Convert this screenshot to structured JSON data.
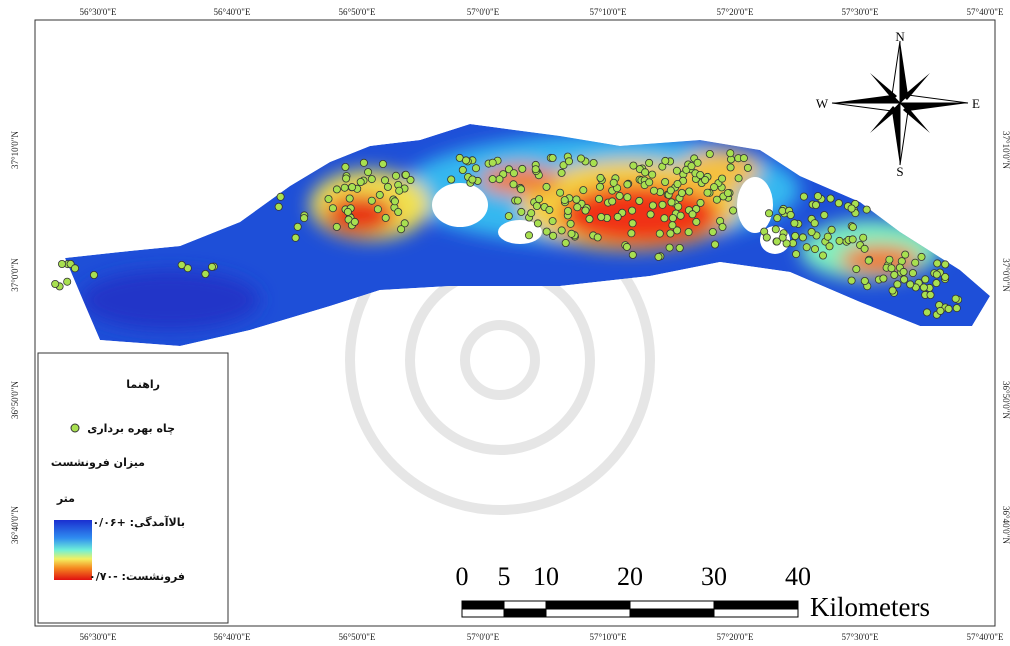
{
  "map": {
    "longitude_labels_top": [
      "56°30'0\"E",
      "56°40'0\"E",
      "56°50'0\"E",
      "57°0'0\"E",
      "57°10'0\"E",
      "57°20'0\"E",
      "57°30'0\"E",
      "57°40'0\"E"
    ],
    "longitude_labels_bottom": [
      "56°30'0\"E",
      "56°40'0\"E",
      "56°50'0\"E",
      "57°0'0\"E",
      "57°10'0\"E",
      "57°20'0\"E",
      "57°30'0\"E",
      "57°40'0\"E"
    ],
    "latitude_labels_left": [
      "37°10'0\"N",
      "37°0'0\"N",
      "36°50'0\"N",
      "36°40'0\"N"
    ],
    "latitude_labels_right": [
      "37°10'0\"N",
      "37°0'0\"N",
      "36°50'0\"N",
      "36°40'0\"N"
    ],
    "compass": {
      "north": "N",
      "south": "S",
      "west": "W",
      "east": "E"
    },
    "legend": {
      "title": "راهنما",
      "wells": "چاه بهره برداری",
      "subsidence_title": "میزان فرونشست",
      "unit": "متر",
      "max_label": "بالاآمدگی: +۰/۰۶",
      "min_label": "فرونشست: -۰/۷۰"
    },
    "scale_bar": {
      "ticks": [
        0,
        5,
        10,
        20,
        30,
        40
      ],
      "unit": "Kilometers"
    }
  }
}
